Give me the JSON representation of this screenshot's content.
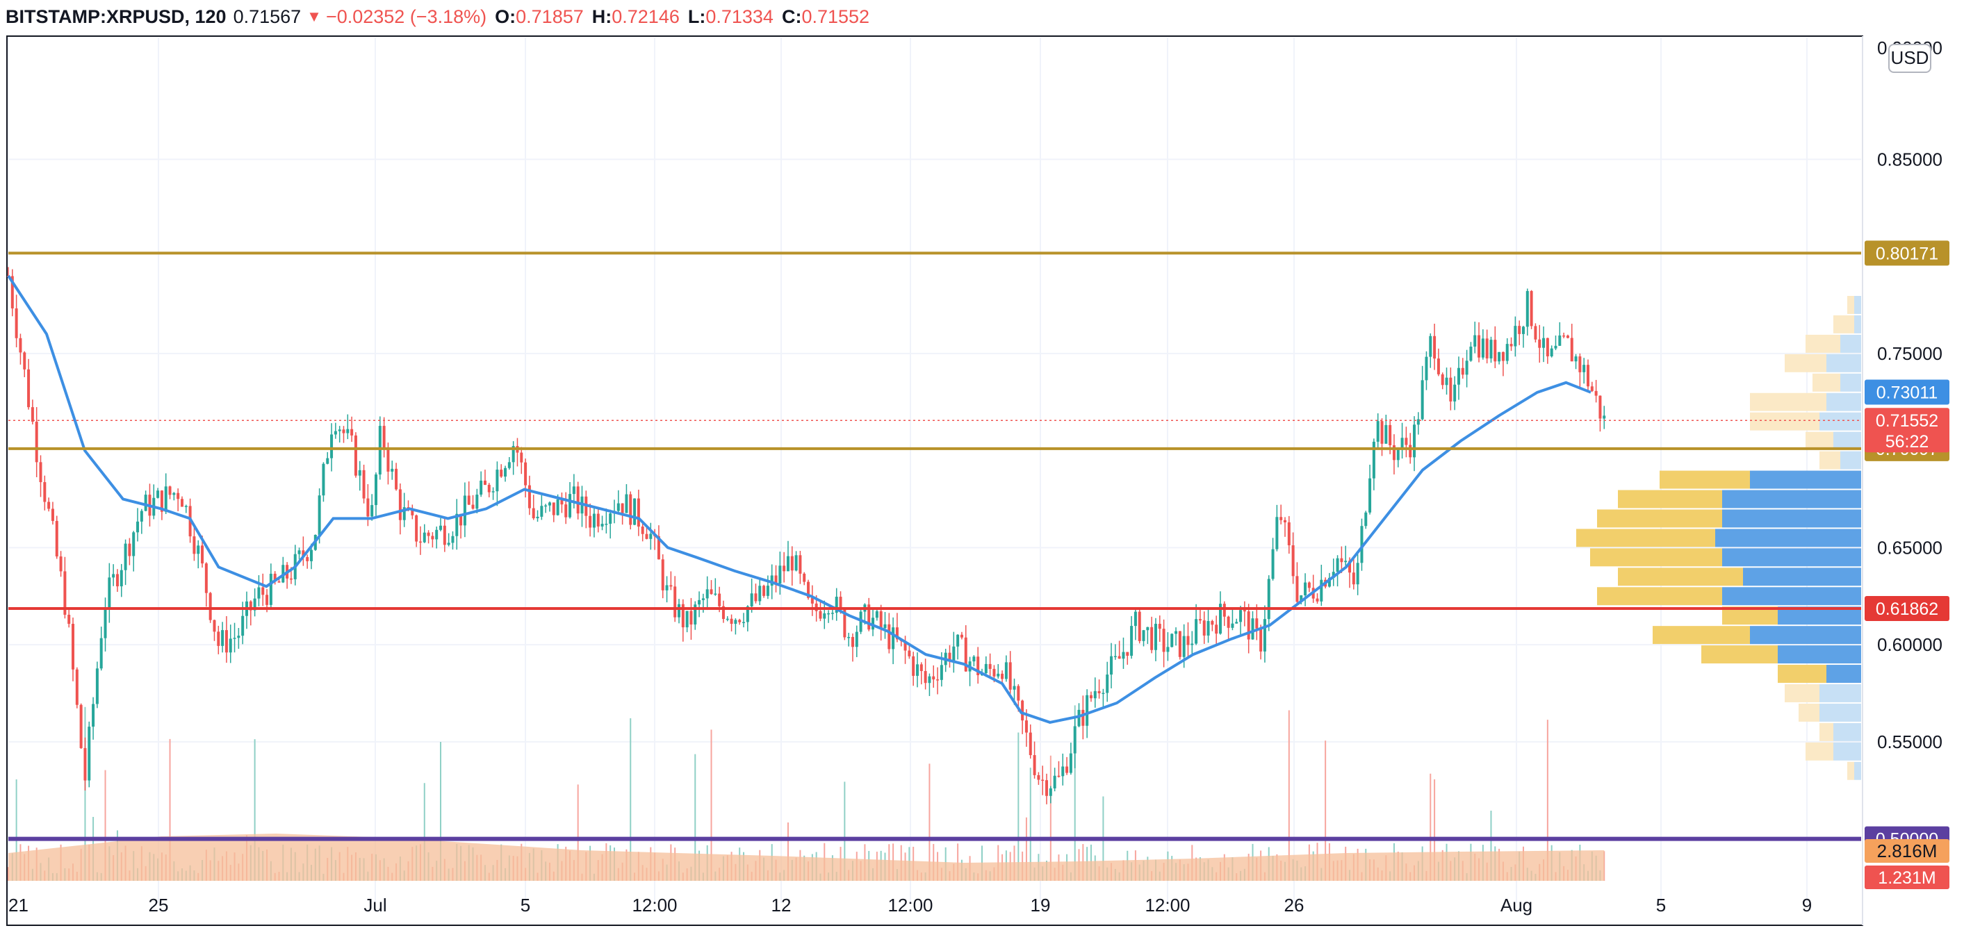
{
  "header": {
    "symbol": "BITSTAMP:XRPUSD, 120",
    "last": "0.71567",
    "change": "−0.02352 (−3.18%)",
    "open_label": "O:",
    "open": "0.71857",
    "high_label": "H:",
    "high": "0.72146",
    "low_label": "L:",
    "low": "0.71334",
    "close_label": "C:",
    "close": "0.71552"
  },
  "currency_label": "USD",
  "colors": {
    "up": "#26a69a",
    "down": "#ef5350",
    "ma": "#3d8fe3",
    "gold": "#b8922a",
    "red_line": "#e53935",
    "purple": "#5b3fa0",
    "vp_yellow": "#f2cf6b",
    "vp_blue": "#5ea2e6",
    "vp_yellow_light": "#fbe9c6",
    "vp_blue_light": "#c7e0f5",
    "volume_area": "#f6bf9a"
  },
  "axis": {
    "y_ticks": [
      "0.85000",
      "0.75000",
      "0.65000",
      "0.60000",
      "0.55000"
    ],
    "x_ticks": [
      "21",
      "25",
      "Jul",
      "5",
      "12:00",
      "12",
      "12:00",
      "19",
      "12:00",
      "26",
      "Aug",
      "5",
      "9"
    ],
    "top_partial": "0.90000"
  },
  "levels": [
    {
      "price": 0.80171,
      "label": "0.80171",
      "color": "#b8922a"
    },
    {
      "price": 0.70097,
      "label": "0.70097",
      "color": "#b8922a"
    },
    {
      "price": 0.61862,
      "label": "0.61862",
      "color": "#e53935"
    },
    {
      "price": 0.5,
      "label": "0.50000",
      "color": "#5b3fa0"
    }
  ],
  "tags": {
    "ma_value": "0.73011",
    "last_price": "0.71552",
    "countdown": "56:22",
    "vol_ma": "2.816M",
    "vol_last": "1.231M"
  },
  "chart_data": {
    "type": "line",
    "ylim": [
      0.5,
      0.9
    ],
    "price_path": [
      [
        0.0,
        0.79
      ],
      [
        1.5,
        0.7
      ],
      [
        3.0,
        0.62
      ],
      [
        4.0,
        0.53
      ],
      [
        5.0,
        0.62
      ],
      [
        7.0,
        0.67
      ],
      [
        9.0,
        0.68
      ],
      [
        10.0,
        0.645
      ],
      [
        11.0,
        0.6
      ],
      [
        12.0,
        0.605
      ],
      [
        13.0,
        0.625
      ],
      [
        14.0,
        0.63
      ],
      [
        15.0,
        0.64
      ],
      [
        16.0,
        0.655
      ],
      [
        17.0,
        0.72
      ],
      [
        18.0,
        0.7
      ],
      [
        19.0,
        0.665
      ],
      [
        19.5,
        0.71
      ],
      [
        20.5,
        0.67
      ],
      [
        21.5,
        0.655
      ],
      [
        23.0,
        0.66
      ],
      [
        25.0,
        0.68
      ],
      [
        26.5,
        0.705
      ],
      [
        27.5,
        0.665
      ],
      [
        29.5,
        0.675
      ],
      [
        30.5,
        0.665
      ],
      [
        32.0,
        0.675
      ],
      [
        33.5,
        0.66
      ],
      [
        34.5,
        0.625
      ],
      [
        35.5,
        0.61
      ],
      [
        36.5,
        0.625
      ],
      [
        38.0,
        0.615
      ],
      [
        39.5,
        0.625
      ],
      [
        41.0,
        0.645
      ],
      [
        42.0,
        0.615
      ],
      [
        43.0,
        0.625
      ],
      [
        44.0,
        0.605
      ],
      [
        45.0,
        0.615
      ],
      [
        46.0,
        0.605
      ],
      [
        47.0,
        0.595
      ],
      [
        48.0,
        0.58
      ],
      [
        49.5,
        0.6
      ],
      [
        51.0,
        0.585
      ],
      [
        52.0,
        0.59
      ],
      [
        53.0,
        0.56
      ],
      [
        54.0,
        0.53
      ],
      [
        55.0,
        0.53
      ],
      [
        56.0,
        0.56
      ],
      [
        57.0,
        0.58
      ],
      [
        58.0,
        0.59
      ],
      [
        59.0,
        0.61
      ],
      [
        60.5,
        0.6
      ],
      [
        61.5,
        0.6
      ],
      [
        62.5,
        0.61
      ],
      [
        63.5,
        0.615
      ],
      [
        64.5,
        0.615
      ],
      [
        65.5,
        0.6
      ],
      [
        66.5,
        0.67
      ],
      [
        67.5,
        0.625
      ],
      [
        68.5,
        0.63
      ],
      [
        69.5,
        0.645
      ],
      [
        70.5,
        0.63
      ],
      [
        71.5,
        0.715
      ],
      [
        72.5,
        0.7
      ],
      [
        73.5,
        0.705
      ],
      [
        74.5,
        0.76
      ],
      [
        75.5,
        0.72
      ],
      [
        76.5,
        0.76
      ],
      [
        77.5,
        0.75
      ],
      [
        78.5,
        0.755
      ],
      [
        79.5,
        0.775
      ],
      [
        80.5,
        0.745
      ],
      [
        81.5,
        0.755
      ],
      [
        82.5,
        0.74
      ],
      [
        83.5,
        0.715
      ]
    ],
    "moving_average": [
      [
        0.0,
        0.79
      ],
      [
        2.0,
        0.76
      ],
      [
        4.0,
        0.7
      ],
      [
        6.0,
        0.675
      ],
      [
        8.0,
        0.67
      ],
      [
        9.5,
        0.665
      ],
      [
        11.0,
        0.64
      ],
      [
        13.5,
        0.63
      ],
      [
        15.0,
        0.64
      ],
      [
        17.0,
        0.665
      ],
      [
        19.0,
        0.665
      ],
      [
        21.0,
        0.67
      ],
      [
        23.0,
        0.665
      ],
      [
        25.0,
        0.67
      ],
      [
        27.0,
        0.68
      ],
      [
        29.0,
        0.675
      ],
      [
        31.0,
        0.67
      ],
      [
        33.0,
        0.665
      ],
      [
        34.5,
        0.65
      ],
      [
        36.0,
        0.645
      ],
      [
        38.0,
        0.638
      ],
      [
        40.0,
        0.632
      ],
      [
        42.0,
        0.625
      ],
      [
        44.0,
        0.615
      ],
      [
        46.0,
        0.607
      ],
      [
        48.0,
        0.595
      ],
      [
        50.0,
        0.59
      ],
      [
        52.0,
        0.58
      ],
      [
        53.0,
        0.565
      ],
      [
        54.5,
        0.56
      ],
      [
        56.0,
        0.563
      ],
      [
        58.0,
        0.57
      ],
      [
        60.0,
        0.583
      ],
      [
        62.0,
        0.595
      ],
      [
        64.0,
        0.603
      ],
      [
        66.0,
        0.61
      ],
      [
        68.0,
        0.625
      ],
      [
        70.0,
        0.64
      ],
      [
        72.0,
        0.665
      ],
      [
        74.0,
        0.69
      ],
      [
        76.0,
        0.705
      ],
      [
        78.0,
        0.718
      ],
      [
        80.0,
        0.73
      ],
      [
        81.5,
        0.735
      ],
      [
        82.8,
        0.73
      ]
    ],
    "volume_profile": [
      {
        "price": 0.775,
        "left": 0.01,
        "right": 0.01,
        "light": true
      },
      {
        "price": 0.765,
        "left": 0.03,
        "right": 0.01,
        "light": true
      },
      {
        "price": 0.755,
        "left": 0.05,
        "right": 0.03,
        "light": true
      },
      {
        "price": 0.745,
        "left": 0.06,
        "right": 0.05,
        "light": true
      },
      {
        "price": 0.735,
        "left": 0.04,
        "right": 0.03,
        "light": true
      },
      {
        "price": 0.725,
        "left": 0.11,
        "right": 0.05,
        "light": true
      },
      {
        "price": 0.715,
        "left": 0.1,
        "right": 0.06,
        "light": true
      },
      {
        "price": 0.705,
        "left": 0.04,
        "right": 0.04,
        "light": true
      },
      {
        "price": 0.695,
        "left": 0.03,
        "right": 0.03,
        "light": true
      },
      {
        "price": 0.685,
        "left": 0.13,
        "right": 0.16,
        "light": false
      },
      {
        "price": 0.675,
        "left": 0.15,
        "right": 0.2,
        "light": false
      },
      {
        "price": 0.665,
        "left": 0.18,
        "right": 0.2,
        "light": false
      },
      {
        "price": 0.655,
        "left": 0.2,
        "right": 0.21,
        "light": false
      },
      {
        "price": 0.645,
        "left": 0.19,
        "right": 0.2,
        "light": false
      },
      {
        "price": 0.635,
        "left": 0.18,
        "right": 0.17,
        "light": false
      },
      {
        "price": 0.625,
        "left": 0.18,
        "right": 0.2,
        "light": false
      },
      {
        "price": 0.615,
        "left": 0.08,
        "right": 0.12,
        "light": false
      },
      {
        "price": 0.605,
        "left": 0.14,
        "right": 0.16,
        "light": false
      },
      {
        "price": 0.595,
        "left": 0.11,
        "right": 0.12,
        "light": false
      },
      {
        "price": 0.585,
        "left": 0.07,
        "right": 0.05,
        "light": false
      },
      {
        "price": 0.575,
        "left": 0.05,
        "right": 0.06,
        "light": true
      },
      {
        "price": 0.565,
        "left": 0.03,
        "right": 0.06,
        "light": true
      },
      {
        "price": 0.555,
        "left": 0.02,
        "right": 0.04,
        "light": true
      },
      {
        "price": 0.545,
        "left": 0.04,
        "right": 0.04,
        "light": true
      },
      {
        "price": 0.535,
        "left": 0.01,
        "right": 0.01,
        "light": true
      }
    ]
  }
}
